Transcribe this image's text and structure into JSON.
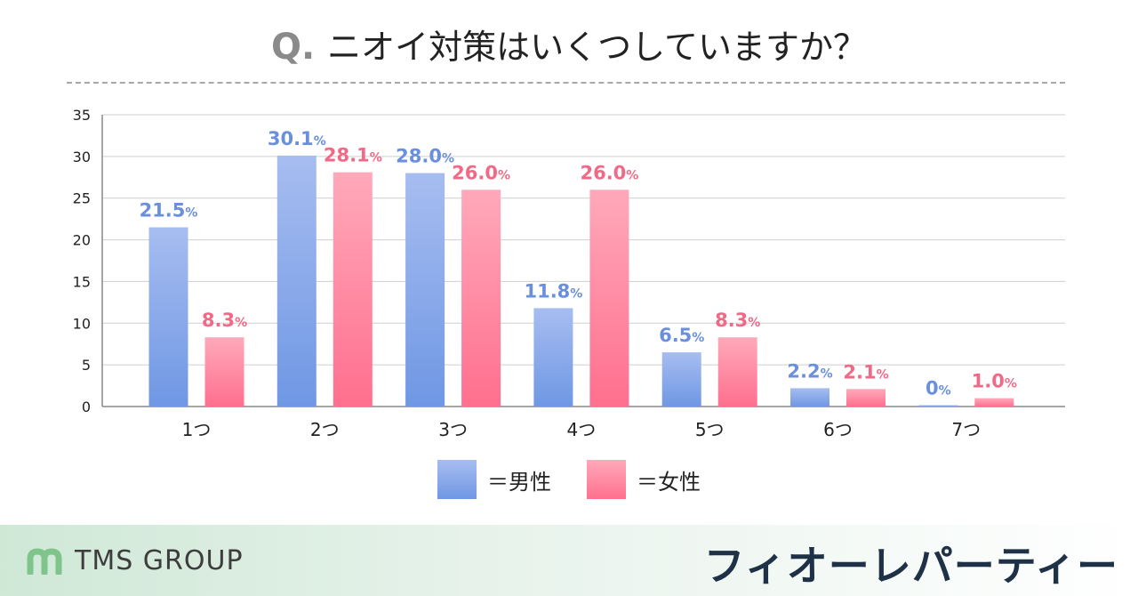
{
  "title": {
    "q": "Q.",
    "text": "ニオイ対策はいくつしていますか？"
  },
  "chart_data": {
    "type": "bar",
    "categories": [
      "1つ",
      "2つ",
      "3つ",
      "4つ",
      "5つ",
      "6つ",
      "7つ"
    ],
    "series": [
      {
        "name": "＝男性",
        "values": [
          21.5,
          30.1,
          28.0,
          11.8,
          6.5,
          2.2,
          0
        ],
        "labels": [
          "21.5",
          "30.1",
          "28.0",
          "11.8",
          "6.5",
          "2.2",
          "0"
        ],
        "color": "#6f97e4",
        "label_color": "#6a8fdc"
      },
      {
        "name": "＝女性",
        "values": [
          8.3,
          28.1,
          26.0,
          26.0,
          8.3,
          2.1,
          1.0
        ],
        "labels": [
          "8.3",
          "28.1",
          "26.0",
          "26.0",
          "8.3",
          "2.1",
          "1.0"
        ],
        "color": "#ff6f8e",
        "label_color": "#f06a87"
      }
    ],
    "unit_suffix": "%",
    "yticks": [
      0,
      5,
      10,
      15,
      20,
      25,
      30,
      35
    ],
    "ylim": [
      0,
      35
    ],
    "grid": true,
    "legend_position": "bottom"
  },
  "legend": {
    "male": "＝男性",
    "female": "＝女性"
  },
  "footer": {
    "group_logo_text": "TMS GROUP",
    "brand_name": "フィオーレパーティー"
  }
}
